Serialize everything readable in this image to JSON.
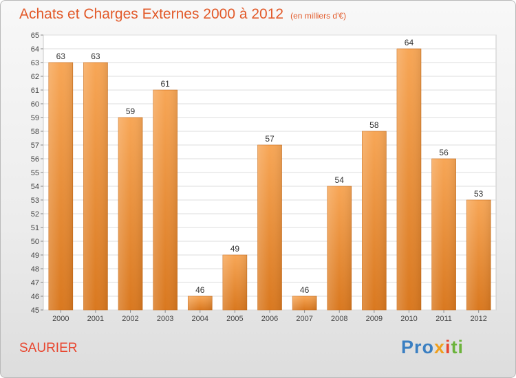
{
  "chart_data": {
    "type": "bar",
    "title": "Achats et Charges Externes 2000 à 2012",
    "subtitle": "(en milliers d'€)",
    "categories": [
      "2000",
      "2001",
      "2002",
      "2003",
      "2004",
      "2005",
      "2006",
      "2007",
      "2008",
      "2009",
      "2010",
      "2011",
      "2012"
    ],
    "values": [
      63,
      63,
      59,
      61,
      46,
      49,
      57,
      46,
      54,
      58,
      64,
      56,
      53
    ],
    "ylim": [
      45,
      65
    ],
    "yticks": [
      45,
      46,
      47,
      48,
      49,
      50,
      51,
      52,
      53,
      54,
      55,
      56,
      57,
      58,
      59,
      60,
      61,
      62,
      63,
      64,
      65
    ],
    "grid": true,
    "bar_color_top": "#f7a656",
    "bar_color_bottom": "#d9781f",
    "title_color": "#e25a2a"
  },
  "footer": {
    "commune": "SAURIER",
    "logo": {
      "p1": "Pro",
      "p2": "x",
      "p3": "i",
      "p4": "ti"
    }
  }
}
